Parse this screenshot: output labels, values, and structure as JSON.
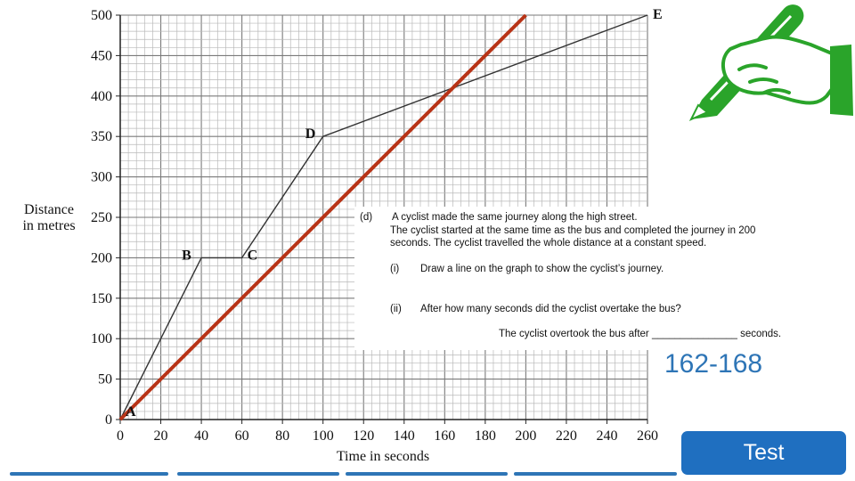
{
  "chart_data": {
    "type": "line",
    "ylabel": "Distance in metres",
    "ylabel_lines": [
      "Distance",
      "in metres"
    ],
    "xlabel": "Time in seconds",
    "xlim": [
      0,
      260
    ],
    "ylim": [
      0,
      500
    ],
    "x_ticks": [
      "0",
      "20",
      "40",
      "60",
      "80",
      "100",
      "120",
      "140",
      "160",
      "180",
      "200",
      "220",
      "240",
      "260"
    ],
    "y_ticks": [
      "0",
      "50",
      "100",
      "150",
      "200",
      "250",
      "300",
      "350",
      "400",
      "450",
      "500"
    ],
    "grid": true,
    "series": [
      {
        "color": "#333333",
        "points": [
          {
            "x": 0,
            "y": 0,
            "label": "A"
          },
          {
            "x": 40,
            "y": 200,
            "label": "B"
          },
          {
            "x": 60,
            "y": 200,
            "label": "C"
          },
          {
            "x": 100,
            "y": 350,
            "label": "D"
          },
          {
            "x": 260,
            "y": 500,
            "label": "E"
          }
        ]
      },
      {
        "color": "#b83316",
        "points": [
          {
            "x": 0,
            "y": 0
          },
          {
            "x": 200,
            "y": 500
          }
        ]
      }
    ]
  },
  "question": {
    "part": "(d)",
    "intro_line1": "A cyclist made the same journey along the high street.",
    "intro_line2": "The cyclist started at the same time as the bus and completed the journey in 200",
    "intro_line3": "seconds. The cyclist travelled the whole distance at a constant speed.",
    "sub1_label": "(i)",
    "sub1_text": "Draw a line on the graph to show the cyclist’s journey.",
    "sub2_label": "(ii)",
    "sub2_text": "After how many seconds did the cyclist overtake the bus?",
    "answer_line": "The cyclist overtook the bus after _______________ seconds."
  },
  "answer": "162-168",
  "test_button_label": "Test",
  "colors": {
    "accent": "#2e75b6",
    "button": "#1f6fc0",
    "pen_green": "#2aa42a",
    "cyclist_line": "#b83316"
  },
  "icons": {
    "pen": "hand-writing-pen-icon"
  }
}
